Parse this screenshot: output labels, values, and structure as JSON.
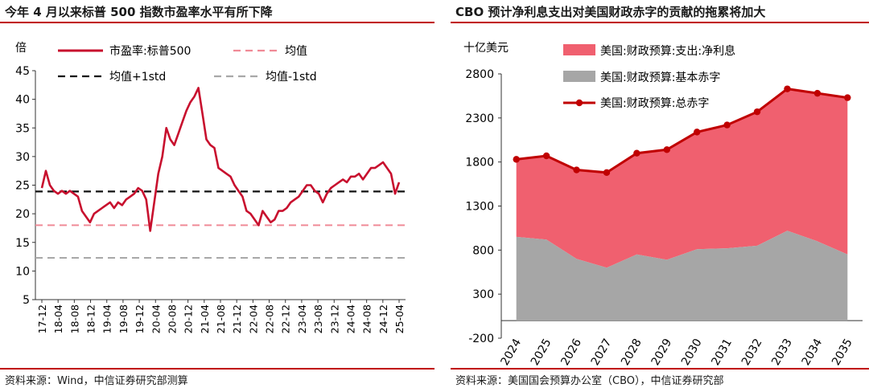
{
  "left": {
    "title": "今年 4 月以来标普 500 指数市盈率水平有所下降",
    "source": "资料来源：Wind，中信证券研究部测算",
    "chart_data": {
      "type": "line",
      "ylabel": "倍",
      "ylim": [
        5,
        45
      ],
      "yticks": [
        "5",
        "10",
        "15",
        "20",
        "25",
        "30",
        "35",
        "40",
        "45"
      ],
      "xticks": [
        "17-12",
        "18-04",
        "18-08",
        "18-12",
        "19-04",
        "19-08",
        "19-12",
        "20-04",
        "20-08",
        "20-12",
        "21-04",
        "21-08",
        "21-12",
        "22-04",
        "22-08",
        "22-12",
        "23-04",
        "23-08",
        "23-12",
        "24-04",
        "24-08",
        "24-12",
        "25-04"
      ],
      "legend": [
        {
          "label": "市盈率:标普500",
          "color": "#c8102e",
          "style": "solid"
        },
        {
          "label": "均值",
          "color": "#f08a96",
          "style": "dashed"
        },
        {
          "label": "均值+1std",
          "color": "#111111",
          "style": "dashed"
        },
        {
          "label": "均值-1std",
          "color": "#a8a8a8",
          "style": "dashed"
        }
      ],
      "reference_lines": {
        "均值": 18.0,
        "均值+1std": 23.9,
        "均值-1std": 12.3
      },
      "series": [
        {
          "name": "市盈率:标普500",
          "x": [
            "17-12",
            "18-01",
            "18-02",
            "18-03",
            "18-04",
            "18-05",
            "18-06",
            "18-07",
            "18-08",
            "18-09",
            "18-10",
            "18-11",
            "18-12",
            "19-01",
            "19-02",
            "19-03",
            "19-04",
            "19-05",
            "19-06",
            "19-07",
            "19-08",
            "19-09",
            "19-10",
            "19-11",
            "19-12",
            "20-01",
            "20-02",
            "20-03",
            "20-04",
            "20-05",
            "20-06",
            "20-07",
            "20-08",
            "20-09",
            "20-10",
            "20-11",
            "20-12",
            "21-01",
            "21-02",
            "21-03",
            "21-04",
            "21-05",
            "21-06",
            "21-07",
            "21-08",
            "21-09",
            "21-10",
            "21-11",
            "21-12",
            "22-01",
            "22-02",
            "22-03",
            "22-04",
            "22-05",
            "22-06",
            "22-07",
            "22-08",
            "22-09",
            "22-10",
            "22-11",
            "22-12",
            "23-01",
            "23-02",
            "23-03",
            "23-04",
            "23-05",
            "23-06",
            "23-07",
            "23-08",
            "23-09",
            "23-10",
            "23-11",
            "23-12",
            "24-01",
            "24-02",
            "24-03",
            "24-04",
            "24-05",
            "24-06",
            "24-07",
            "24-08",
            "24-09",
            "24-10",
            "24-11",
            "24-12",
            "25-01",
            "25-02",
            "25-03",
            "25-04",
            "25-05"
          ],
          "values": [
            24.5,
            27.5,
            25.0,
            24.0,
            23.5,
            24.0,
            23.5,
            24.0,
            23.5,
            23.0,
            20.5,
            19.5,
            18.5,
            20.0,
            20.5,
            21.0,
            21.5,
            22.0,
            21.0,
            22.0,
            21.5,
            22.5,
            23.0,
            23.5,
            24.5,
            24.0,
            22.5,
            17.0,
            22.0,
            27.0,
            30.0,
            35.0,
            33.0,
            32.0,
            34.0,
            36.0,
            38.0,
            39.5,
            40.5,
            42.0,
            37.5,
            33.0,
            32.0,
            31.5,
            28.0,
            27.5,
            27.0,
            26.5,
            25.0,
            24.0,
            23.0,
            20.5,
            20.0,
            19.0,
            18.0,
            20.5,
            19.5,
            18.5,
            19.0,
            20.5,
            20.5,
            21.0,
            22.0,
            22.5,
            23.0,
            24.0,
            25.0,
            25.0,
            24.0,
            23.5,
            22.0,
            23.5,
            24.5,
            25.0,
            25.5,
            26.0,
            25.5,
            26.5,
            26.5,
            27.0,
            26.0,
            27.0,
            28.0,
            28.0,
            28.5,
            29.0,
            28.0,
            27.0,
            23.5,
            25.5
          ]
        }
      ]
    }
  },
  "right": {
    "title": "CBO 预计净利息支出对美国财政赤字的贡献的拖累将加大",
    "source": "资料来源：美国国会预算办公室（CBO），中信证券研究部",
    "chart_data": {
      "type": "area",
      "ylabel": "十亿美元",
      "ylim": [
        -200,
        2800
      ],
      "yticks": [
        "-200",
        "300",
        "800",
        "1300",
        "1800",
        "2300",
        "2800"
      ],
      "categories": [
        "2024",
        "2025",
        "2026",
        "2027",
        "2028",
        "2029",
        "2030",
        "2031",
        "2032",
        "2033",
        "2034",
        "2035"
      ],
      "series": [
        {
          "name": "美国:财政预算:支出:净利息",
          "type": "area",
          "color": "#f0606f",
          "values": [
            880,
            950,
            1010,
            1080,
            1150,
            1250,
            1330,
            1400,
            1520,
            1610,
            1680,
            1780
          ]
        },
        {
          "name": "美国:财政预算:基本赤字",
          "type": "area",
          "color": "#a6a6a6",
          "values": [
            950,
            920,
            700,
            600,
            750,
            690,
            810,
            820,
            850,
            1020,
            900,
            750
          ]
        },
        {
          "name": "美国:财政预算:总赤字",
          "type": "line",
          "color": "#c00000",
          "values": [
            1830,
            1870,
            1710,
            1680,
            1900,
            1940,
            2140,
            2220,
            2370,
            2630,
            2580,
            2530
          ]
        }
      ]
    }
  }
}
